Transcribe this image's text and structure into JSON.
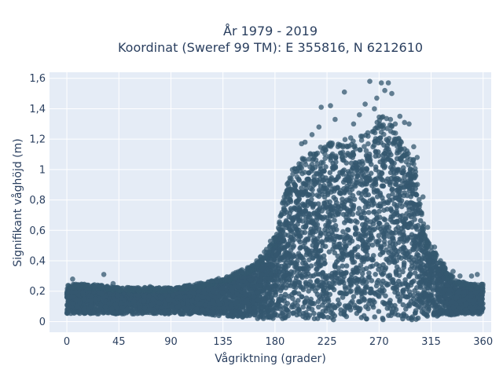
{
  "chart_data": {
    "type": "scatter",
    "title_lines": [
      "År 1979 - 2019",
      "Koordinat (Sweref 99 TM): E 355816, N 6212610"
    ],
    "xlabel": "Vågriktning (grader)",
    "ylabel": "Signifikant våghöjd (m)",
    "xlim": [
      -15,
      367
    ],
    "ylim": [
      -0.07,
      1.64
    ],
    "x_ticks": [
      0,
      45,
      90,
      135,
      180,
      225,
      270,
      315,
      360
    ],
    "x_tick_labels": [
      "0",
      "45",
      "90",
      "135",
      "180",
      "225",
      "270",
      "315",
      "360"
    ],
    "y_ticks": [
      0,
      0.2,
      0.4,
      0.6,
      0.8,
      1,
      1.2,
      1.4,
      1.6
    ],
    "y_tick_labels": [
      "0",
      "0,2",
      "0,4",
      "0,6",
      "0,8",
      "1",
      "1,2",
      "1,4",
      "1,6"
    ],
    "grid": true,
    "marker_color": "#34586f",
    "background_color": "#e5ecf6",
    "envelope": {
      "x": [
        0,
        20,
        45,
        90,
        120,
        140,
        160,
        170,
        180,
        190,
        200,
        210,
        225,
        240,
        255,
        265,
        270,
        280,
        290,
        300,
        305,
        310,
        320,
        330,
        340,
        350,
        360
      ],
      "y_max": [
        0.22,
        0.22,
        0.2,
        0.2,
        0.23,
        0.27,
        0.33,
        0.4,
        0.52,
        0.8,
        0.95,
        1.0,
        1.05,
        1.08,
        1.1,
        1.12,
        1.22,
        1.2,
        1.05,
        0.95,
        0.75,
        0.5,
        0.4,
        0.28,
        0.24,
        0.22,
        0.22
      ],
      "y_min": [
        0.05,
        0.05,
        0.05,
        0.05,
        0.05,
        0.03,
        0.02,
        0.02,
        0.01,
        0.01,
        0.01,
        0.01,
        0.01,
        0.01,
        0.01,
        0.01,
        0.01,
        0.01,
        0.01,
        0.01,
        0.02,
        0.02,
        0.03,
        0.04,
        0.05,
        0.05,
        0.05
      ]
    },
    "outliers": [
      {
        "x": 5,
        "y": 0.28
      },
      {
        "x": 18,
        "y": 0.24
      },
      {
        "x": 32,
        "y": 0.31
      },
      {
        "x": 40,
        "y": 0.25
      },
      {
        "x": 58,
        "y": 0.22
      },
      {
        "x": 72,
        "y": 0.23
      },
      {
        "x": 118,
        "y": 0.24
      },
      {
        "x": 140,
        "y": 0.27
      },
      {
        "x": 160,
        "y": 0.34
      },
      {
        "x": 165,
        "y": 0.38
      },
      {
        "x": 180,
        "y": 0.5
      },
      {
        "x": 186,
        "y": 0.62
      },
      {
        "x": 188,
        "y": 0.82
      },
      {
        "x": 195,
        "y": 1.0
      },
      {
        "x": 203,
        "y": 1.17
      },
      {
        "x": 206,
        "y": 1.18
      },
      {
        "x": 212,
        "y": 1.23
      },
      {
        "x": 218,
        "y": 1.28
      },
      {
        "x": 220,
        "y": 1.41
      },
      {
        "x": 228,
        "y": 1.42
      },
      {
        "x": 232,
        "y": 1.33
      },
      {
        "x": 240,
        "y": 1.51
      },
      {
        "x": 248,
        "y": 1.3
      },
      {
        "x": 253,
        "y": 1.36
      },
      {
        "x": 258,
        "y": 1.43
      },
      {
        "x": 262,
        "y": 1.58
      },
      {
        "x": 266,
        "y": 1.4
      },
      {
        "x": 268,
        "y": 1.47
      },
      {
        "x": 272,
        "y": 1.57
      },
      {
        "x": 275,
        "y": 1.52
      },
      {
        "x": 278,
        "y": 1.57
      },
      {
        "x": 281,
        "y": 1.5
      },
      {
        "x": 284,
        "y": 1.3
      },
      {
        "x": 288,
        "y": 1.35
      },
      {
        "x": 292,
        "y": 1.31
      },
      {
        "x": 296,
        "y": 1.3
      },
      {
        "x": 300,
        "y": 1.15
      },
      {
        "x": 303,
        "y": 1.08
      },
      {
        "x": 308,
        "y": 0.82
      },
      {
        "x": 312,
        "y": 0.62
      },
      {
        "x": 318,
        "y": 0.49
      },
      {
        "x": 326,
        "y": 0.38
      },
      {
        "x": 334,
        "y": 0.33
      },
      {
        "x": 340,
        "y": 0.3
      },
      {
        "x": 350,
        "y": 0.3
      },
      {
        "x": 355,
        "y": 0.31
      }
    ]
  }
}
